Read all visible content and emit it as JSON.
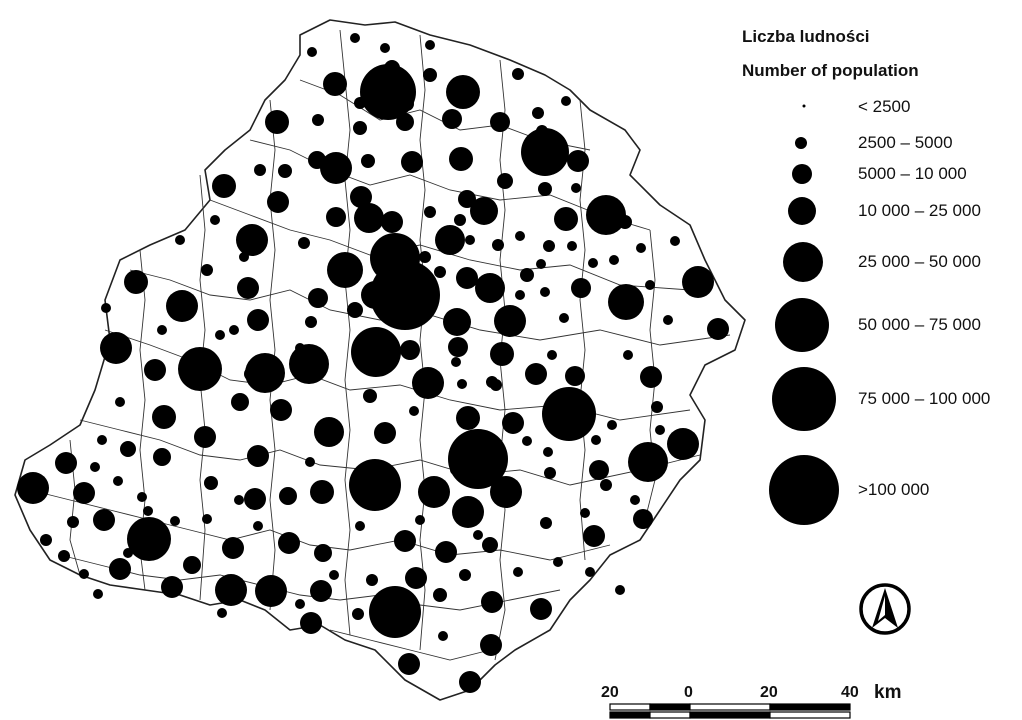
{
  "legend": {
    "title_pl": "Liczba ludności",
    "title_en": "Number of population",
    "classes": [
      {
        "label": "< 2500"
      },
      {
        "label": "2500 – 5000"
      },
      {
        "label": "5000 – 10 000"
      },
      {
        "label": "10 000 – 25 000"
      },
      {
        "label": "25 000 – 50 000"
      },
      {
        "label": "50 000 – 75 000"
      },
      {
        "label": "75 000 – 100 000"
      },
      {
        "label": ">100 000"
      }
    ]
  },
  "scale_bar": {
    "ticks": [
      "20",
      "0",
      "20",
      "40"
    ],
    "unit": "km"
  },
  "north_arrow": {
    "icon": "north-arrow-icon"
  },
  "colors": {
    "symbol": "#000000",
    "boundary": "#222222",
    "background": "#ffffff"
  }
}
